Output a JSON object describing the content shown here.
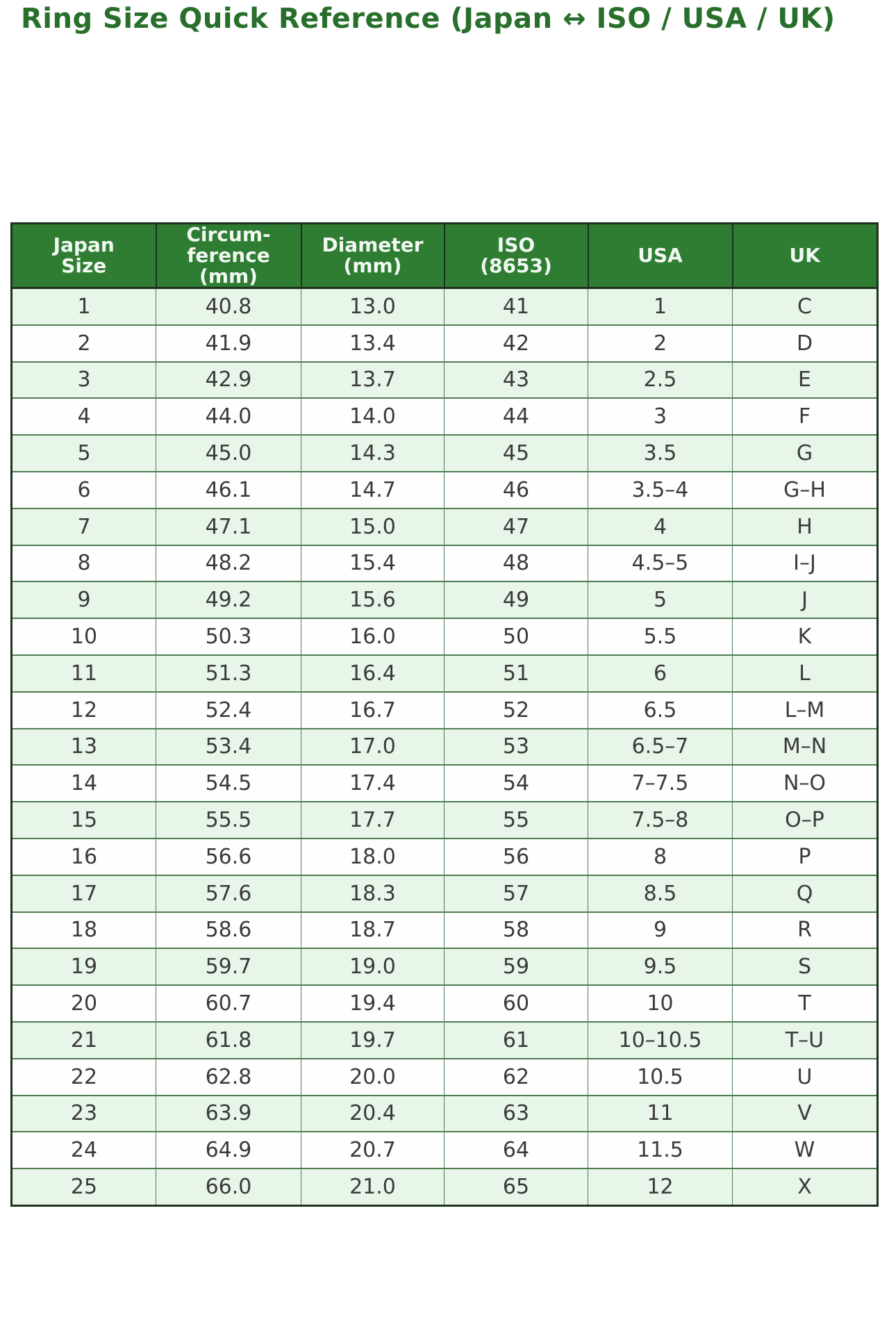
{
  "title": {
    "text": "Ring Size Quick Reference (Japan ↔ ISO / USA / UK)"
  },
  "chart_data": {
    "type": "table",
    "title": "Ring Size Quick Reference (Japan ↔ ISO / USA / UK)",
    "columns": [
      "Japan\nSize",
      "Circum-\nference\n(mm)",
      "Diameter\n(mm)",
      "ISO\n(8653)",
      "USA",
      "UK"
    ],
    "column_keys": [
      "japan-size",
      "circumference-mm",
      "diameter-mm",
      "iso-8653",
      "usa",
      "uk"
    ],
    "rows": [
      [
        "1",
        "40.8",
        "13.0",
        "41",
        "1",
        "C"
      ],
      [
        "2",
        "41.9",
        "13.4",
        "42",
        "2",
        "D"
      ],
      [
        "3",
        "42.9",
        "13.7",
        "43",
        "2.5",
        "E"
      ],
      [
        "4",
        "44.0",
        "14.0",
        "44",
        "3",
        "F"
      ],
      [
        "5",
        "45.0",
        "14.3",
        "45",
        "3.5",
        "G"
      ],
      [
        "6",
        "46.1",
        "14.7",
        "46",
        "3.5–4",
        "G–H"
      ],
      [
        "7",
        "47.1",
        "15.0",
        "47",
        "4",
        "H"
      ],
      [
        "8",
        "48.2",
        "15.4",
        "48",
        "4.5–5",
        "I–J"
      ],
      [
        "9",
        "49.2",
        "15.6",
        "49",
        "5",
        "J"
      ],
      [
        "10",
        "50.3",
        "16.0",
        "50",
        "5.5",
        "K"
      ],
      [
        "11",
        "51.3",
        "16.4",
        "51",
        "6",
        "L"
      ],
      [
        "12",
        "52.4",
        "16.7",
        "52",
        "6.5",
        "L–M"
      ],
      [
        "13",
        "53.4",
        "17.0",
        "53",
        "6.5–7",
        "M–N"
      ],
      [
        "14",
        "54.5",
        "17.4",
        "54",
        "7–7.5",
        "N–O"
      ],
      [
        "15",
        "55.5",
        "17.7",
        "55",
        "7.5–8",
        "O–P"
      ],
      [
        "16",
        "56.6",
        "18.0",
        "56",
        "8",
        "P"
      ],
      [
        "17",
        "57.6",
        "18.3",
        "57",
        "8.5",
        "Q"
      ],
      [
        "18",
        "58.6",
        "18.7",
        "58",
        "9",
        "R"
      ],
      [
        "19",
        "59.7",
        "19.0",
        "59",
        "9.5",
        "S"
      ],
      [
        "20",
        "60.7",
        "19.4",
        "60",
        "10",
        "T"
      ],
      [
        "21",
        "61.8",
        "19.7",
        "61",
        "10–10.5",
        "T–U"
      ],
      [
        "22",
        "62.8",
        "20.0",
        "62",
        "10.5",
        "U"
      ],
      [
        "23",
        "63.9",
        "20.4",
        "63",
        "11",
        "V"
      ],
      [
        "24",
        "64.9",
        "20.7",
        "64",
        "11.5",
        "W"
      ],
      [
        "25",
        "66.0",
        "21.0",
        "65",
        "12",
        "X"
      ]
    ],
    "layout_hints": {
      "striped": true,
      "stripe_on": "odd-rows",
      "header_position": "top",
      "grid": true
    }
  },
  "colors": {
    "title": "#276f2b",
    "header_bg": "#2e7d32",
    "header_text": "#f2f8f2",
    "stripe_bg": "#e8f5e9",
    "row_bg": "#fdfefd",
    "grid": "#4e7d52",
    "outer_border": "#1e301f",
    "cell_text": "#3a3a3a"
  }
}
